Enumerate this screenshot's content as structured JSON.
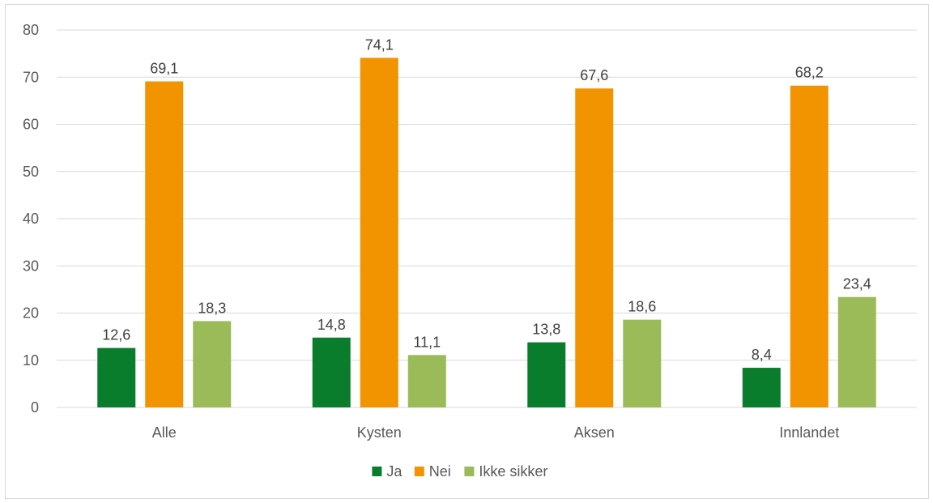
{
  "chart_data": {
    "type": "bar",
    "categories": [
      "Alle",
      "Kysten",
      "Aksen",
      "Innlandet"
    ],
    "series": [
      {
        "name": "Ja",
        "values": [
          12.6,
          14.8,
          13.8,
          8.4
        ],
        "color": "#0a7d2c",
        "labels": [
          "12,6",
          "14,8",
          "13,8",
          "8,4"
        ]
      },
      {
        "name": "Nei",
        "values": [
          69.1,
          74.1,
          67.6,
          68.2
        ],
        "color": "#f29400",
        "labels": [
          "69,1",
          "74,1",
          "67,6",
          "68,2"
        ]
      },
      {
        "name": "Ikke sikker",
        "values": [
          18.3,
          11.1,
          18.6,
          23.4
        ],
        "color": "#9bbb59",
        "labels": [
          "18,3",
          "11,1",
          "18,6",
          "23,4"
        ]
      }
    ],
    "ylim": [
      0,
      80
    ],
    "yticks": [
      0,
      10,
      20,
      30,
      40,
      50,
      60,
      70,
      80
    ],
    "grid": true,
    "legend_position": "bottom",
    "title": "",
    "xlabel": "",
    "ylabel": ""
  }
}
